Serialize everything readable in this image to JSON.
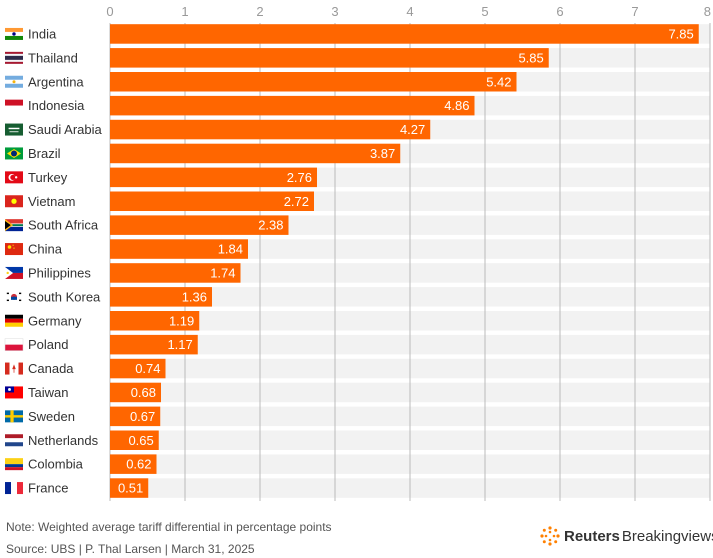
{
  "chart_data": {
    "type": "bar",
    "orientation": "horizontal",
    "categories": [
      "India",
      "Thailand",
      "Argentina",
      "Indonesia",
      "Saudi Arabia",
      "Brazil",
      "Turkey",
      "Vietnam",
      "South Africa",
      "China",
      "Philippines",
      "South Korea",
      "Germany",
      "Poland",
      "Canada",
      "Taiwan",
      "Sweden",
      "Netherlands",
      "Colombia",
      "France"
    ],
    "values": [
      7.85,
      5.85,
      5.42,
      4.86,
      4.27,
      3.87,
      2.76,
      2.72,
      2.38,
      1.84,
      1.74,
      1.36,
      1.19,
      1.17,
      0.74,
      0.68,
      0.67,
      0.65,
      0.62,
      0.51
    ],
    "value_labels": [
      "7.85",
      "5.85",
      "5.42",
      "4.86",
      "4.27",
      "3.87",
      "2.76",
      "2.72",
      "2.38",
      "1.84",
      "1.74",
      "1.36",
      "1.19",
      "1.17",
      "0.74",
      "0.68",
      "0.67",
      "0.65",
      "0.62",
      "0.51"
    ],
    "xlim": [
      0,
      8
    ],
    "x_ticks": [
      "0",
      "1",
      "2",
      "3",
      "4",
      "5",
      "6",
      "7",
      "8"
    ],
    "x_axis_position": "top",
    "grid": true,
    "bar_color": "#FF6600",
    "row_background_color": "#F2F2F2",
    "gridline_color": "#BBBBBB",
    "flag_icons": [
      "flag-india-icon",
      "flag-thailand-icon",
      "flag-argentina-icon",
      "flag-indonesia-icon",
      "flag-saudi-arabia-icon",
      "flag-brazil-icon",
      "flag-turkey-icon",
      "flag-vietnam-icon",
      "flag-south-africa-icon",
      "flag-china-icon",
      "flag-philippines-icon",
      "flag-south-korea-icon",
      "flag-germany-icon",
      "flag-poland-icon",
      "flag-canada-icon",
      "flag-taiwan-icon",
      "flag-sweden-icon",
      "flag-netherlands-icon",
      "flag-colombia-icon",
      "flag-france-icon"
    ]
  },
  "footer": {
    "note": "Note: Weighted average tariff differential in percentage points",
    "source": "Source: UBS | P. Thal Larsen | March 31, 2025",
    "logo_bold": "Reuters",
    "logo_light": "Breakingviews",
    "logo_icon": "reuters-logo-icon"
  }
}
